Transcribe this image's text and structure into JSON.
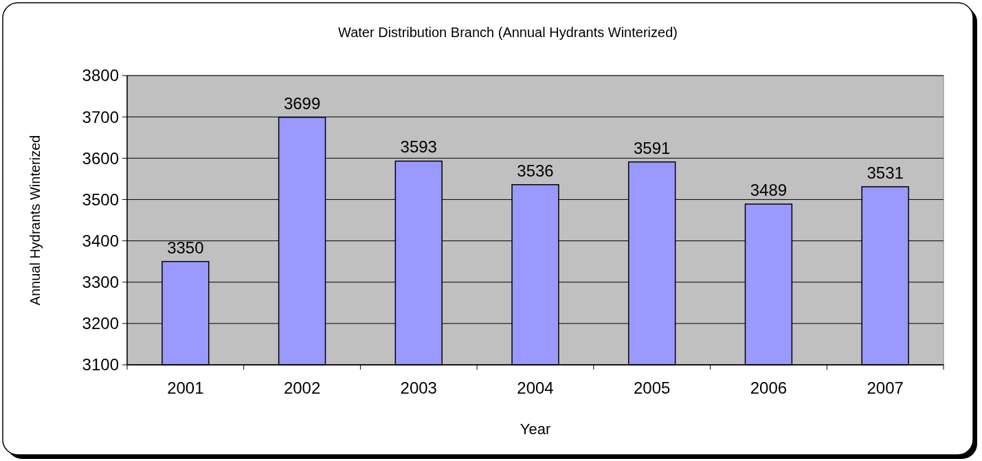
{
  "chart_data": {
    "type": "bar",
    "title": "Water Distribution Branch (Annual Hydrants Winterized)",
    "xlabel": "Year",
    "ylabel": "Annual Hydrants Winterized",
    "categories": [
      "2001",
      "2002",
      "2003",
      "2004",
      "2005",
      "2006",
      "2007"
    ],
    "values": [
      3350,
      3699,
      3593,
      3536,
      3591,
      3489,
      3531
    ],
    "color": "#9999ff",
    "ylim": [
      3100,
      3800
    ],
    "yticks": [
      3100,
      3200,
      3300,
      3400,
      3500,
      3600,
      3700,
      3800
    ],
    "grid": "y",
    "data_labels": true
  }
}
